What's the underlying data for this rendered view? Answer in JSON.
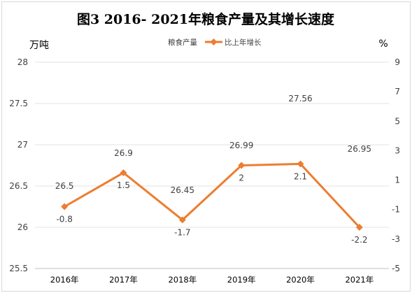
{
  "chart_data": {
    "type": "line",
    "title": "图3 2016- 2021年粮食产量及其增长速度",
    "y_left_unit": "万吨",
    "y_right_unit": "%",
    "categories": [
      "2016年",
      "2017年",
      "2018年",
      "2019年",
      "2020年",
      "2021年"
    ],
    "y_left_ticks": [
      "25.5",
      "26",
      "26.5",
      "27",
      "27.5",
      "28"
    ],
    "y_right_ticks": [
      "-5",
      "-3",
      "-1",
      "1",
      "3",
      "5",
      "7",
      "9"
    ],
    "ylim_left": [
      25.5,
      28
    ],
    "ylim_right": [
      -5,
      9
    ],
    "series": [
      {
        "name": "粮食产量",
        "axis": "left",
        "values": [
          26.5,
          26.9,
          26.45,
          26.99,
          27.56,
          26.95
        ],
        "labels": [
          "26.5",
          "26.9",
          "26.45",
          "26.99",
          "27.56",
          "26.95"
        ]
      },
      {
        "name": "比上年增长",
        "axis": "right",
        "values": [
          -0.8,
          1.5,
          -1.7,
          2,
          2.1,
          -2.2
        ],
        "labels": [
          "-0.8",
          "1.5",
          "-1.7",
          "2",
          "2.1",
          "-2.2"
        ],
        "color": "#ed7d31"
      }
    ],
    "grid": true,
    "legend_position": "top"
  }
}
